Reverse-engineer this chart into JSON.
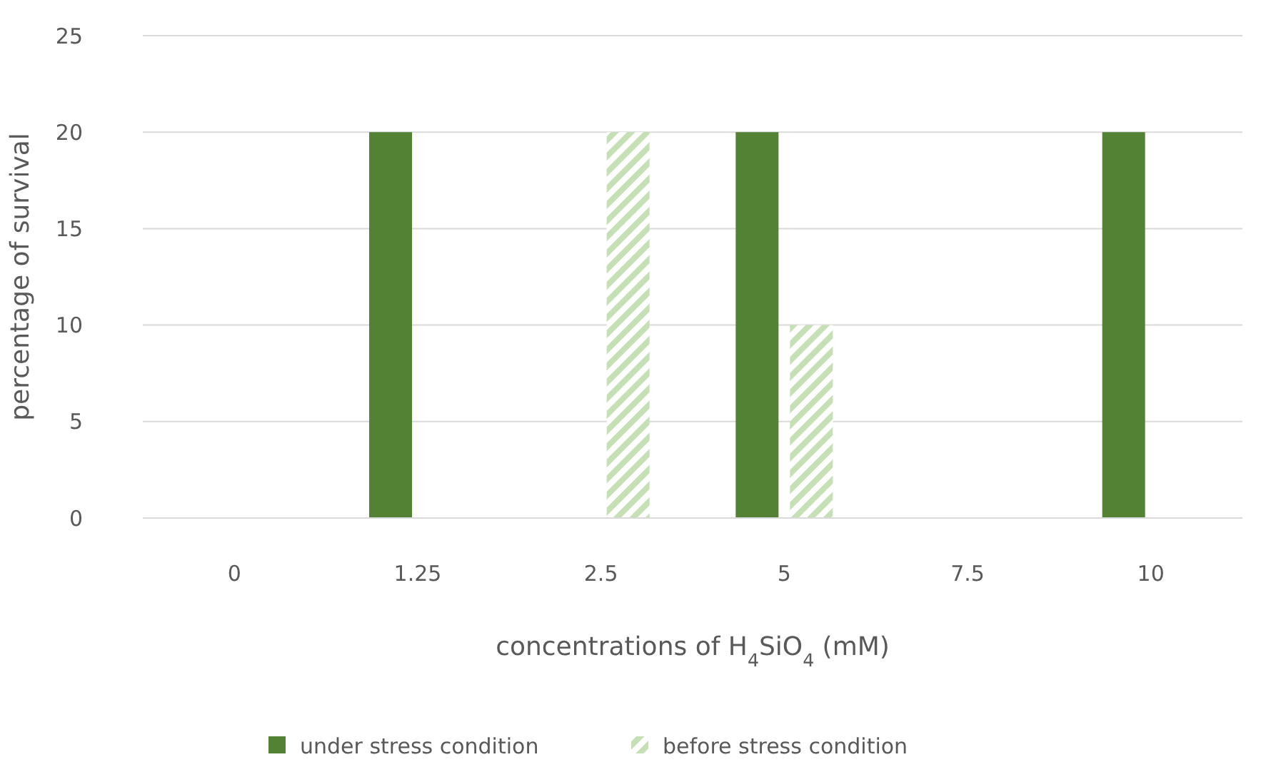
{
  "chart_data": {
    "type": "bar",
    "xlabel": "concentrations of H$_{4}$SiO$_{4}$ (mM)",
    "ylabel": "percentage of survival",
    "categories": [
      "0",
      "1.25",
      "2.5",
      "5",
      "7.5",
      "10"
    ],
    "series": [
      {
        "name": "under stress condition",
        "color": "#548235",
        "values": [
          0,
          20,
          0,
          20,
          0,
          20
        ]
      },
      {
        "name": "before stress condition",
        "color": "#c5e0b4",
        "values": [
          0,
          0,
          20,
          10,
          0,
          0
        ]
      }
    ],
    "ylim": [
      0,
      25
    ],
    "yticks": [
      0,
      5,
      10,
      15,
      20,
      25
    ],
    "grid": "y",
    "legend": "bottom"
  }
}
